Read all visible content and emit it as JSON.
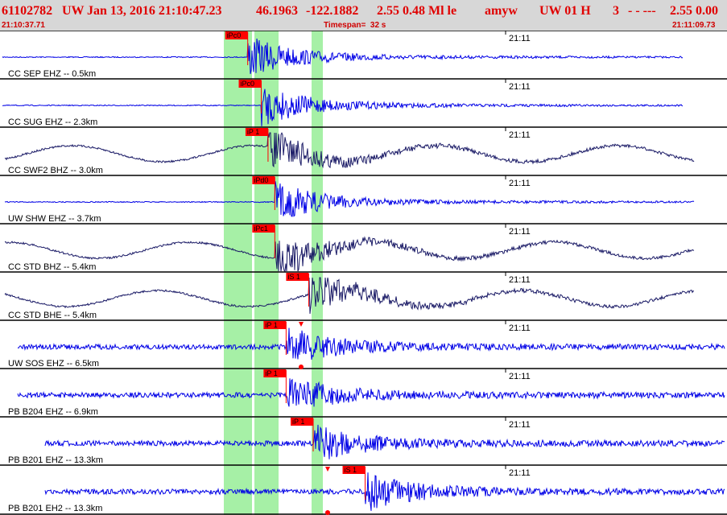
{
  "header": {
    "event_id": "61102782",
    "network": "UW",
    "datetime": "Jan 13, 2016 21:10:47.23",
    "latitude": "46.1963",
    "longitude": "-122.1882",
    "magnitude_info": "2.55 0.48 Ml le",
    "analyst": "amyw",
    "quality": "UW 01 H",
    "num_value": "3",
    "dashes": "- - ---",
    "final_mag": "2.55 0.00",
    "start_time": "21:10:37.71",
    "timespan": "Timespan=  32 s",
    "end_time": "21:11:09.73"
  },
  "time_marker_label": "21:11",
  "colors": {
    "header_bg": "#d7d7d7",
    "header_text": "#e00000",
    "trace_blue": "#0000e6",
    "trace_navy": "#1a1a66",
    "pick_red": "#ff0000",
    "window_green": "#a6f0a6",
    "grid": "#000000"
  },
  "traces": [
    {
      "label": "CC SEP EHZ -- 0.5km",
      "color": "blue",
      "picks": [
        "iPc0"
      ],
      "arrival_s": 10.9
    },
    {
      "label": "CC SUG EHZ -- 2.3km",
      "color": "blue",
      "picks": [
        "iPc0"
      ],
      "arrival_s": 11.5
    },
    {
      "label": "CC SWF2 BHZ -- 3.0km",
      "color": "navy",
      "picks": [
        "iP 1"
      ],
      "arrival_s": 11.8
    },
    {
      "label": "UW SHW EHZ -- 3.7km",
      "color": "blue",
      "picks": [
        "iPd0"
      ],
      "arrival_s": 12.1
    },
    {
      "label": "CC STD BHZ -- 5.4km",
      "color": "navy",
      "picks": [
        "iPc1"
      ],
      "arrival_s": 12.1
    },
    {
      "label": "CC STD BHE -- 5.4km",
      "color": "navy",
      "picks": [
        "iS 1"
      ],
      "arrival_s": 13.6
    },
    {
      "label": "UW SOS EHZ -- 6.5km",
      "color": "blue",
      "picks": [
        "iP 1"
      ],
      "arrival_s": 12.6
    },
    {
      "label": "PB B204 EHZ -- 6.9km",
      "color": "blue",
      "picks": [
        "iP 1"
      ],
      "arrival_s": 12.6
    },
    {
      "label": "PB B201 EHZ -- 13.3km",
      "color": "blue",
      "picks": [
        "iP 1"
      ],
      "arrival_s": 13.8
    },
    {
      "label": "PB B201 EH2 -- 13.3km",
      "color": "blue",
      "picks": [
        "iS 1"
      ],
      "arrival_s": 16.1
    }
  ]
}
